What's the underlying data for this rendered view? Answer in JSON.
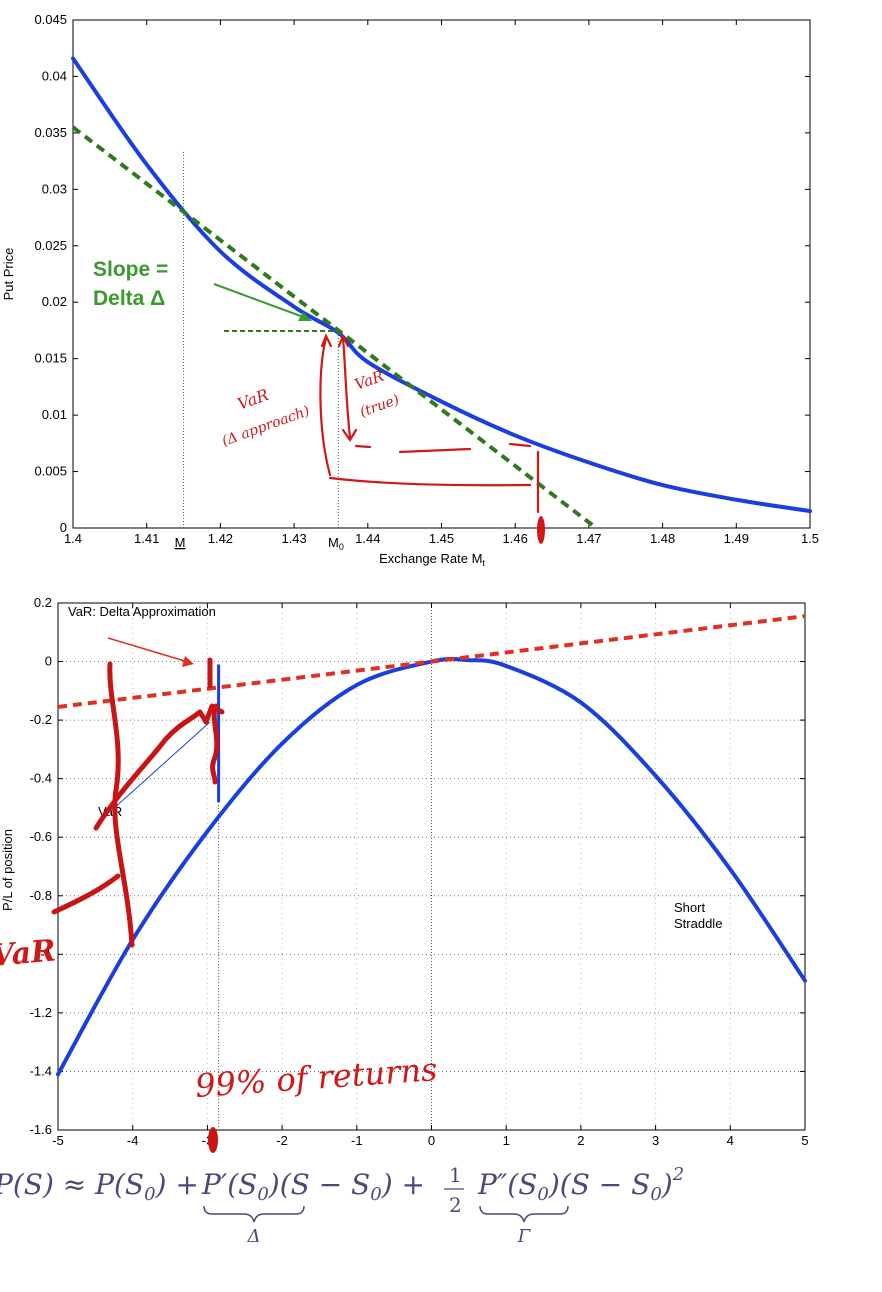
{
  "chart_data": [
    {
      "type": "line",
      "xlabel": "Exchange Rate M",
      "xlabel_sub": "t",
      "ylabel": "Put Price",
      "xlim": [
        1.4,
        1.5
      ],
      "ylim": [
        0,
        0.045
      ],
      "x_ticks": [
        "1.4",
        "1.41",
        "1.42",
        "1.43",
        "1.44",
        "1.45",
        "1.46",
        "1.47",
        "1.48",
        "1.49",
        "1.5"
      ],
      "y_ticks": [
        "0",
        "0.005",
        "0.01",
        "0.015",
        "0.02",
        "0.025",
        "0.03",
        "0.035",
        "0.04",
        "0.045"
      ],
      "series": [
        {
          "style": "solid",
          "color": "#1a3fe0",
          "x": [
            1.4,
            1.41,
            1.42,
            1.43,
            1.436,
            1.44,
            1.45,
            1.46,
            1.47,
            1.48,
            1.49,
            1.5
          ],
          "y": [
            0.0416,
            0.0322,
            0.0245,
            0.0196,
            0.0173,
            0.0147,
            0.0112,
            0.0082,
            0.0058,
            0.0038,
            0.0025,
            0.0015
          ]
        },
        {
          "style": "dashed",
          "color": "#2f7a1f",
          "x": [
            1.4,
            1.471
          ],
          "y": [
            0.0355,
            0.0
          ]
        }
      ],
      "annotations": {
        "slope_line1": "Slope =",
        "slope_line2": "Delta Δ",
        "m_bar": "M",
        "m0": "M",
        "m0_sub": "0",
        "vline_m_bar_x": 1.415,
        "vline_m0_x": 1.436,
        "handwritten_var_delta_1": "VaR",
        "handwritten_var_delta_2": "(Δ approach)",
        "handwritten_var_true_1": "VaR",
        "handwritten_var_true_2": "(true)"
      }
    },
    {
      "type": "line",
      "xlabel": "",
      "ylabel": "P/L of position",
      "xlim": [
        -5,
        5
      ],
      "ylim": [
        -1.6,
        0.2
      ],
      "x_ticks": [
        "-5",
        "-4",
        "-3",
        "-2",
        "-1",
        "0",
        "1",
        "2",
        "3",
        "4",
        "5"
      ],
      "y_ticks": [
        "0.2",
        "0",
        "-0.2",
        "-0.4",
        "-0.6",
        "-0.8",
        "-1",
        "-1.2",
        "-1.4",
        "-1.6"
      ],
      "series": [
        {
          "style": "solid",
          "color": "#1a3fe0",
          "x": [
            -5,
            -4,
            -3,
            -2,
            -1,
            0,
            0.5,
            1,
            2,
            3,
            4,
            5
          ],
          "y": [
            -1.41,
            -0.95,
            -0.58,
            -0.28,
            -0.08,
            0.0,
            0.005,
            -0.015,
            -0.14,
            -0.39,
            -0.71,
            -1.09
          ]
        },
        {
          "style": "dashed",
          "color": "#e03020",
          "x": [
            -5,
            5
          ],
          "y": [
            -0.155,
            0.155
          ]
        }
      ],
      "grid": "dotted",
      "annotations": {
        "title": "VaR: Delta Approximation",
        "short_straddle_1": "Short",
        "short_straddle_2": "Straddle",
        "var_label": "VaR",
        "handwritten_var": "VaR",
        "handwritten_returns": "99% of returns",
        "vline_x": -2.85,
        "zero_vline_x": 0
      }
    }
  ],
  "formula": {
    "lhs": "P(S) ≈ P(S",
    "term1": "P′(S",
    "term1_tail": ")(S − S",
    "half_num": "1",
    "half_den": "2",
    "term2": "P″(S",
    "term2_tail": ")(S − S",
    "exp": "2",
    "sub0": "0",
    "delta": "Δ",
    "gamma": "Γ"
  }
}
